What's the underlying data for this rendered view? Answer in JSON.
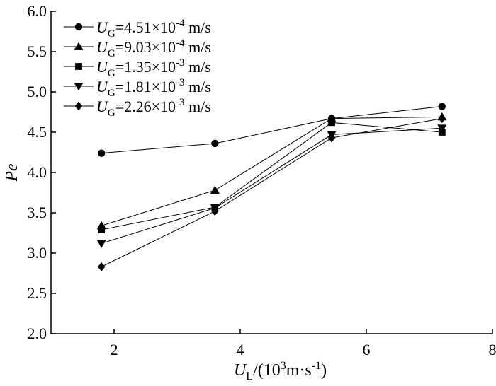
{
  "chart_data": {
    "type": "line",
    "title": "",
    "xlabel": {
      "main": "U",
      "sub": "L",
      "rest": "/(10",
      "sup": "3",
      "unit": "m·s",
      "unit_sup": "-1",
      "close": ")"
    },
    "ylabel": "Pe",
    "xlim": [
      1.0,
      8.0
    ],
    "ylim": [
      2.0,
      6.0
    ],
    "xticks": [
      2,
      4,
      6,
      8
    ],
    "yticks": [
      "2.0",
      "2.5",
      "3.0",
      "3.5",
      "4.0",
      "4.5",
      "5.0",
      "5.5",
      "6.0"
    ],
    "grid": false,
    "legend_position": "top-left",
    "x": [
      1.8,
      3.6,
      5.45,
      7.2
    ],
    "series": [
      {
        "name": "UG=4.51×10-4 m/s",
        "marker": "circle",
        "legend": {
          "main": "U",
          "sub": "G",
          "eq": "=4.51×10",
          "sup": "-4",
          "unit": " m/s"
        },
        "values": [
          4.24,
          4.36,
          4.67,
          4.82
        ]
      },
      {
        "name": "UG=9.03×10-4 m/s",
        "marker": "triangle-up",
        "legend": {
          "main": "U",
          "sub": "G",
          "eq": "=9.03×10",
          "sup": "-4",
          "unit": " m/s"
        },
        "values": [
          3.34,
          3.78,
          4.67,
          4.69
        ]
      },
      {
        "name": "UG=1.35×10-3 m/s",
        "marker": "square",
        "legend": {
          "main": "U",
          "sub": "G",
          "eq": "=1.35×10",
          "sup": "-3",
          "unit": " m/s"
        },
        "values": [
          3.29,
          3.57,
          4.62,
          4.5
        ]
      },
      {
        "name": "UG=1.81×10-3 m/s",
        "marker": "triangle-down",
        "legend": {
          "main": "U",
          "sub": "G",
          "eq": "=1.81×10",
          "sup": "-3",
          "unit": " m/s"
        },
        "values": [
          3.12,
          3.56,
          4.47,
          4.55
        ]
      },
      {
        "name": "UG=2.26×10-3 m/s",
        "marker": "diamond",
        "legend": {
          "main": "U",
          "sub": "G",
          "eq": "=2.26×10",
          "sup": "-3",
          "unit": " m/s"
        },
        "values": [
          2.83,
          3.52,
          4.43,
          4.67
        ]
      }
    ]
  }
}
